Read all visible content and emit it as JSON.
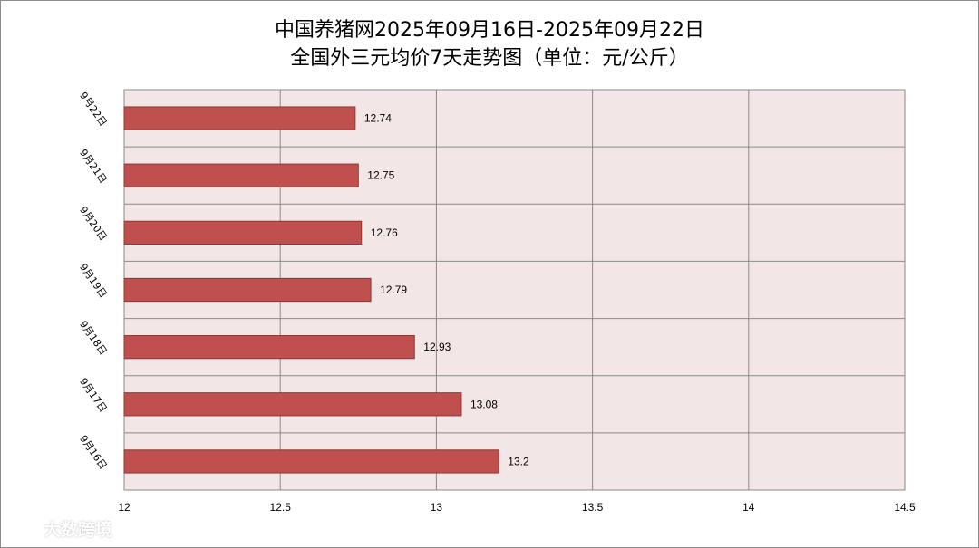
{
  "chart_data": {
    "type": "bar",
    "orientation": "horizontal",
    "title_line1": "中国养猪网2025年09月16日-2025年09月22日",
    "title_line2": "全国外三元均价7天走势图（单位：元/公斤）",
    "categories": [
      "9月22日",
      "9月21日",
      "9月20日",
      "9月19日",
      "9月18日",
      "9月17日",
      "9月16日"
    ],
    "values": [
      12.74,
      12.75,
      12.76,
      12.79,
      12.93,
      13.08,
      13.2
    ],
    "value_labels": [
      "12.74",
      "12.75",
      "12.76",
      "12.79",
      "12.93",
      "13.08",
      "13.2"
    ],
    "x_ticks": [
      "12",
      "12.5",
      "13",
      "13.5",
      "14",
      "14.5"
    ],
    "xlim": [
      12,
      14.5
    ],
    "grid": true,
    "colors": {
      "bar_fill": "#c0504d",
      "bar_stroke": "#8c3836",
      "plot_bg": "#f2e6e6",
      "grid": "#8a8a8a"
    }
  },
  "watermark": {
    "text": "大数跨境"
  }
}
